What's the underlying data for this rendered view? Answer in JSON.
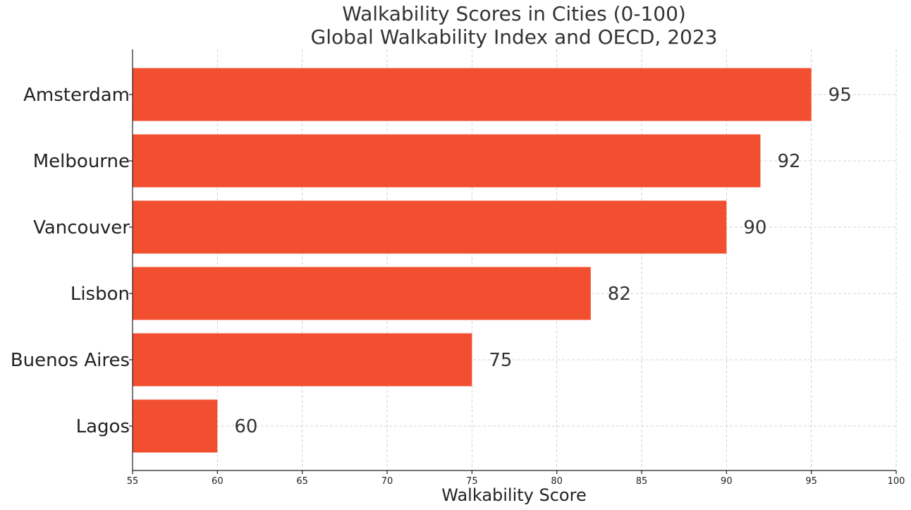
{
  "chart_data": {
    "type": "bar",
    "orientation": "horizontal",
    "title": "Walkability Scores in Cities (0-100)",
    "subtitle": "Global Walkability Index and OECD, 2023",
    "xlabel": "Walkability Score",
    "ylabel": "",
    "categories": [
      "Amsterdam",
      "Melbourne",
      "Vancouver",
      "Lisbon",
      "Buenos Aires",
      "Lagos"
    ],
    "values": [
      95,
      92,
      90,
      82,
      75,
      60
    ],
    "xlim": [
      55,
      100
    ],
    "xticks": [
      55,
      60,
      65,
      70,
      75,
      80,
      85,
      90,
      95,
      100
    ],
    "grid": true,
    "bar_color": "#f24e30"
  }
}
